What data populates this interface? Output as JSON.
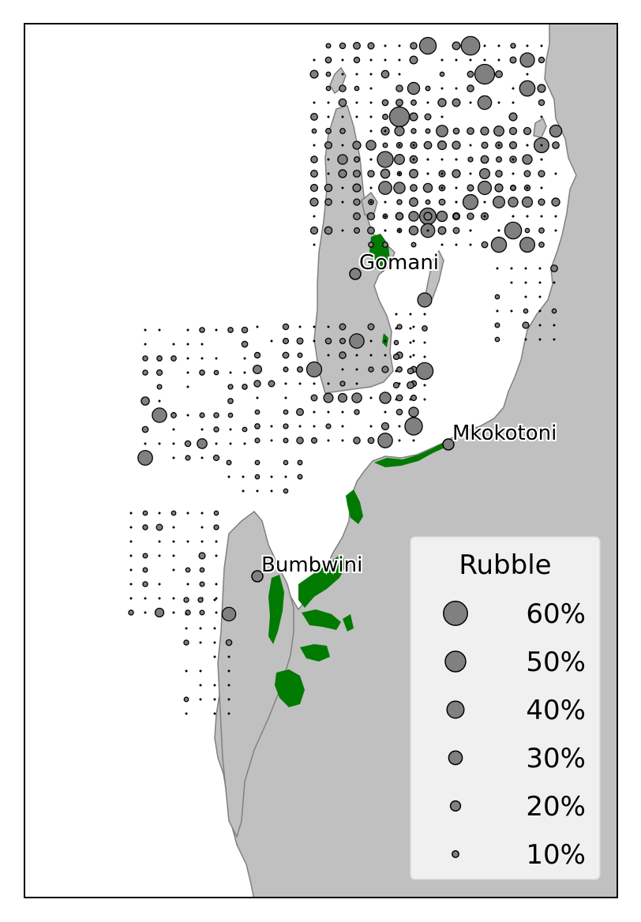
{
  "colors": {
    "land": "#c0c0c0",
    "coast": "#808080",
    "seagrass": "#007a00",
    "bubble_fill": "#808080",
    "bubble_stroke": "#000000",
    "legend_bg": "#f0f0f0",
    "frame": "#000000"
  },
  "places": [
    {
      "id": "gomani",
      "label": "Gomani"
    },
    {
      "id": "mkokotoni",
      "label": "Mkokotoni"
    },
    {
      "id": "bumbwini",
      "label": "Bumbwini"
    }
  ],
  "legend": {
    "title": "Rubble",
    "entries": [
      {
        "label": "60%",
        "value": 60
      },
      {
        "label": "50%",
        "value": 50
      },
      {
        "label": "40%",
        "value": 40
      },
      {
        "label": "30%",
        "value": 30
      },
      {
        "label": "20%",
        "value": 20
      },
      {
        "label": "10%",
        "value": 10
      }
    ]
  },
  "rubble_grid": [
    "...3aa8880..04.8aa..",
    "..2........58a8a4...",
    ".........1.8885a.....",
    "0...3....0.....a3....",
    "...4.8.....8..44.3...",
    "0.......5.8.........",
    "0.......4.4.........",
    "...3...1.....3..48.....",
    ".....7......88...8.....",
    "...8.8...8......8....."
  ]
}
